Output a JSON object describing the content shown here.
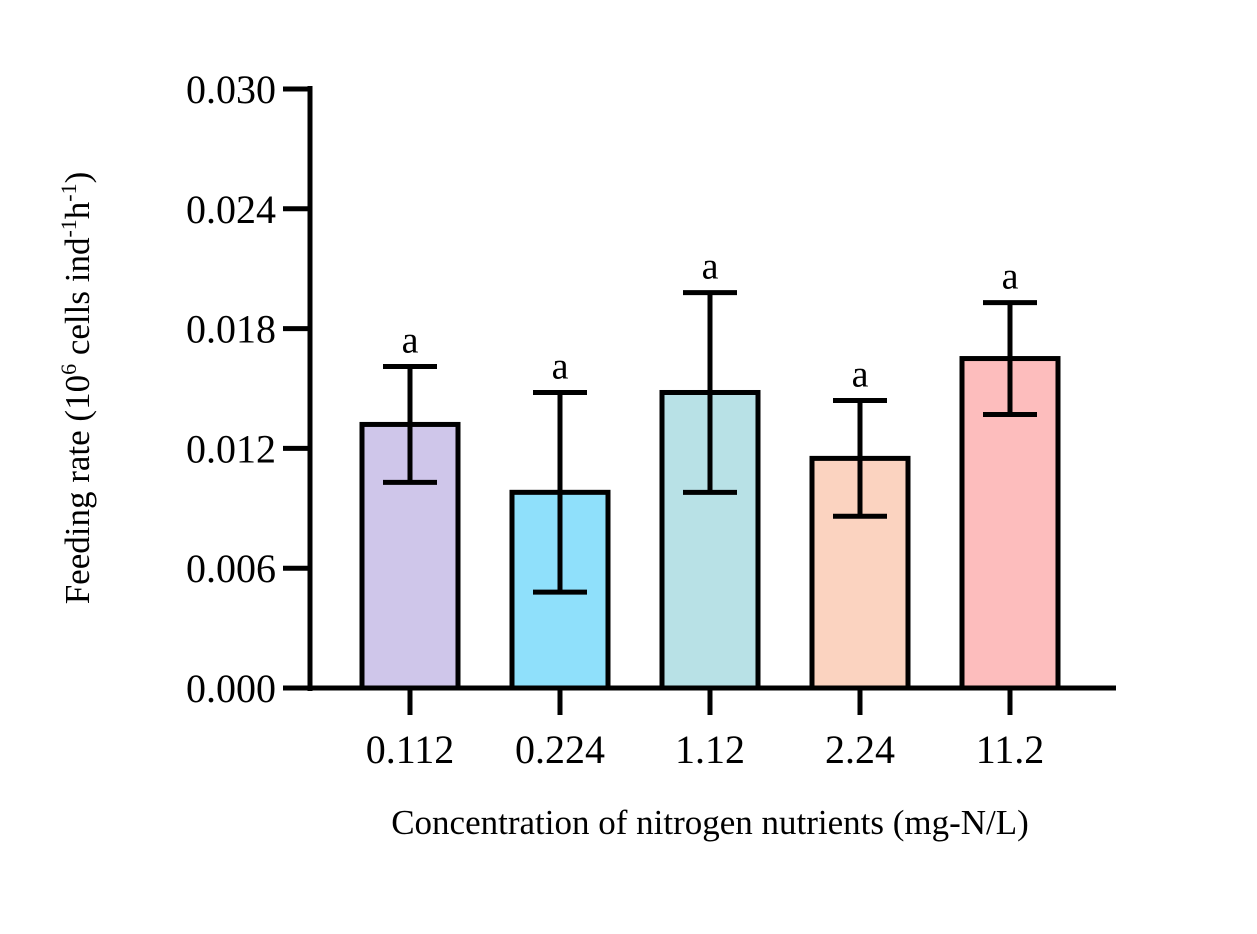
{
  "chart_data": {
    "type": "bar",
    "title": "",
    "xlabel": "Concentration of nitrogen nutrients (mg-N/L)",
    "ylabel": {
      "base": "Feeding rate (10",
      "exp1": "6",
      "mid": " cells ind",
      "exp2": "-1",
      "mid2": "h",
      "exp3": "-1",
      "end": ")"
    },
    "categories": [
      "0.112",
      "0.224",
      "1.12",
      "2.24",
      "11.2"
    ],
    "values": [
      0.0132,
      0.0098,
      0.0148,
      0.0115,
      0.0165
    ],
    "errors": [
      0.0029,
      0.005,
      0.005,
      0.0029,
      0.0028
    ],
    "significance": [
      "a",
      "a",
      "a",
      "a",
      "a"
    ],
    "bar_colors": [
      "#cfc6ea",
      "#8fe0fb",
      "#b8e1e6",
      "#fbd3c0",
      "#fdbdbd"
    ],
    "ylim": [
      0,
      0.03
    ],
    "yticks": [
      "0.000",
      "0.006",
      "0.012",
      "0.018",
      "0.024",
      "0.030"
    ],
    "grid": false
  }
}
